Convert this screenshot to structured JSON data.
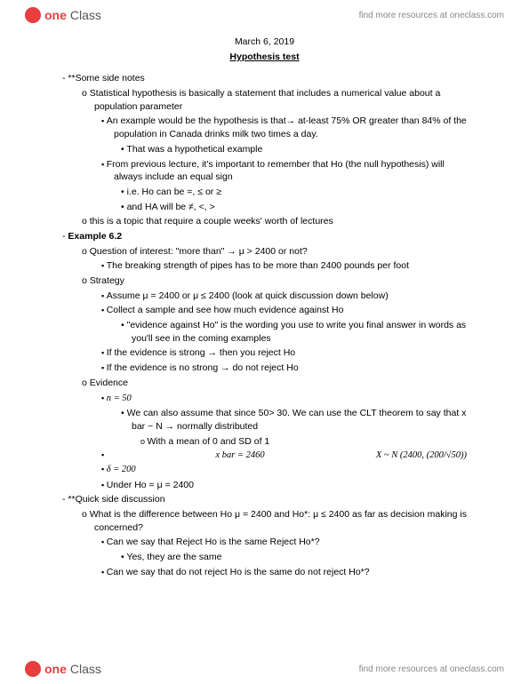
{
  "brand": {
    "one": "one",
    "class": "Class",
    "tagline": "find more resources at oneclass.com"
  },
  "date": "March 6, 2019",
  "title": "Hypothesis test",
  "sec1": {
    "h": "**Some side notes",
    "c1": "Statistical hypothesis is basically a statement that includes a numerical value about a population parameter",
    "s1": "An example would be the hypothesis is that→ at-least 75% OR greater than 84% of the population in Canada drinks milk two times a day.",
    "b1": "That was a hypothetical example",
    "s2": "From previous lecture, it's important to remember that Ho (the null hypothesis) will always include an equal sign",
    "b2": "i.e. Ho can be =, ≤ or ≥",
    "b3": "and HA will be ≠, <, >",
    "c2": "this is a topic that require a couple weeks' worth of lectures"
  },
  "sec2": {
    "h": "Example 6.2",
    "c1": "Question of interest: \"more than\" → μ > 2400 or not?",
    "s1": "The breaking strength of pipes has to be more than 2400 pounds per foot",
    "c2": "Strategy",
    "s2": "Assume μ = 2400 or μ ≤ 2400 (look at quick discussion down below)",
    "s3": "Collect a sample and see how much evidence against Ho",
    "b1": "\"evidence against Ho\" is the wording you use to write you final answer in words as you'll see in the coming examples",
    "s4": "If the evidence is strong → then you reject Ho",
    "s5": "If the evidence is no strong → do not reject Ho",
    "c3": "Evidence",
    "s6": "n = 50",
    "b2": "We can also assume that since 50> 30. We can use the CLT theorem to say that x bar ~ N → normally distributed",
    "h1": "With a mean of 0 and SD of 1",
    "s7a": "x bar = 2460",
    "s7b": "X ~ N (2400, (200/√50))",
    "s8": "δ = 200",
    "s9": "Under Ho = μ = 2400"
  },
  "sec3": {
    "h": "**Quick side discussion",
    "c1": "What is the difference between Ho μ = 2400 and Ho*: μ ≤ 2400 as far as decision making is concerned?",
    "s1": "Can we say that Reject Ho is the same Reject Ho*?",
    "b1": "Yes, they are the same",
    "s2": "Can we say that do not reject Ho is the same do not reject Ho*?"
  }
}
